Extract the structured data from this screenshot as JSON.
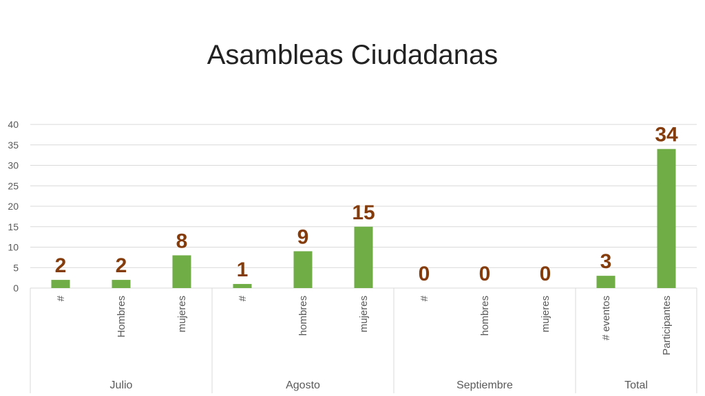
{
  "chart_data": {
    "type": "bar",
    "title": "Asambleas Ciudadanas",
    "xlabel": "",
    "ylabel": "",
    "ylim": [
      0,
      40
    ],
    "yticks": [
      0,
      5,
      10,
      15,
      20,
      25,
      30,
      35,
      40
    ],
    "grid": true,
    "legend": "none",
    "groups": [
      {
        "name": "Julio",
        "categories": [
          "#",
          "Hombres",
          "mujeres"
        ],
        "values": [
          2,
          2,
          8
        ]
      },
      {
        "name": "Agosto",
        "categories": [
          "#",
          "hombres",
          "mujeres"
        ],
        "values": [
          1,
          9,
          15
        ]
      },
      {
        "name": "Septiembre",
        "categories": [
          "#",
          "hombres",
          "mujeres"
        ],
        "values": [
          0,
          0,
          0
        ]
      },
      {
        "name": "Total",
        "categories": [
          "# eventos",
          "Participantes"
        ],
        "values": [
          3,
          34
        ]
      }
    ],
    "colors": {
      "bar": "#70ad47",
      "data_label": "#843c0c",
      "grid": "#d9d9d9",
      "axis_text": "#595959"
    }
  }
}
